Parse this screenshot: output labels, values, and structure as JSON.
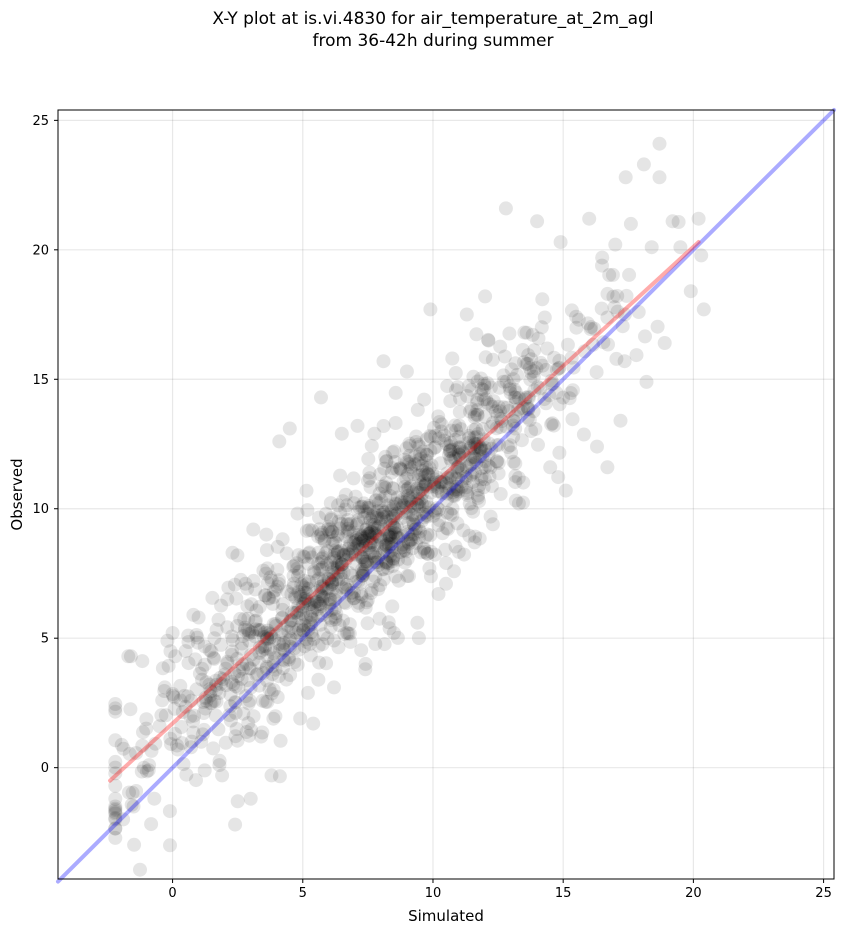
{
  "chart_data": {
    "type": "scatter",
    "title_line1": "X-Y plot at is.vi.4830 for air_temperature_at_2m_agl",
    "title_line2": "from 36-42h during summer",
    "xlabel": "Simulated",
    "ylabel": "Observed",
    "xlim": [
      -4.4,
      25.4
    ],
    "ylim": [
      -4.3,
      25.4
    ],
    "xticks": [
      0,
      5,
      10,
      15,
      20,
      25
    ],
    "yticks": [
      0,
      5,
      10,
      15,
      20,
      25
    ],
    "grid": true,
    "point_color": "#000000",
    "point_alpha": 0.1,
    "identity_line": {
      "color": "#0000ff",
      "x": [
        -4.4,
        25.4
      ],
      "y": [
        -4.4,
        25.4
      ]
    },
    "fit_line": {
      "color": "#ff0000",
      "x": [
        -2.4,
        20.2
      ],
      "y": [
        -0.5,
        20.3
      ]
    },
    "point_count": 1400,
    "points": [
      [
        -1.6,
        4.3
      ],
      [
        -1.7,
        4.3
      ],
      [
        -2.2,
        -2.0
      ],
      [
        -1.9,
        -2.0
      ],
      [
        -1.5,
        -1.5
      ],
      [
        -1.4,
        -0.9
      ],
      [
        -1.1,
        0.0
      ],
      [
        -0.9,
        0.1
      ],
      [
        -0.7,
        -1.2
      ],
      [
        -0.5,
        1.6
      ],
      [
        -0.4,
        2.6
      ],
      [
        -0.3,
        3.1
      ],
      [
        -0.2,
        4.9
      ],
      [
        0.0,
        5.2
      ],
      [
        0.1,
        4.3
      ],
      [
        -0.1,
        -3.0
      ],
      [
        0.2,
        0.7
      ],
      [
        0.3,
        2.6
      ],
      [
        0.5,
        4.5
      ],
      [
        0.6,
        5.1
      ],
      [
        0.8,
        5.9
      ],
      [
        1.0,
        5.8
      ],
      [
        1.1,
        1.0
      ],
      [
        1.3,
        3.3
      ],
      [
        1.5,
        2.5
      ],
      [
        1.6,
        4.2
      ],
      [
        1.8,
        0.1
      ],
      [
        1.9,
        -0.3
      ],
      [
        2.1,
        6.5
      ],
      [
        2.3,
        8.3
      ],
      [
        2.4,
        -2.2
      ],
      [
        2.5,
        -1.3
      ],
      [
        2.8,
        7.1
      ],
      [
        3.0,
        -1.2
      ],
      [
        3.1,
        9.2
      ],
      [
        3.4,
        1.2
      ],
      [
        3.6,
        9.0
      ],
      [
        3.8,
        -0.3
      ],
      [
        4.1,
        12.6
      ],
      [
        4.5,
        13.1
      ],
      [
        4.9,
        1.9
      ],
      [
        5.4,
        1.7
      ],
      [
        5.6,
        8.3
      ],
      [
        5.7,
        14.3
      ],
      [
        6.2,
        3.1
      ],
      [
        6.5,
        12.9
      ],
      [
        7.1,
        13.2
      ],
      [
        7.4,
        3.8
      ],
      [
        8.1,
        15.7
      ],
      [
        8.5,
        5.2
      ],
      [
        9.0,
        15.3
      ],
      [
        9.4,
        5.6
      ],
      [
        9.9,
        17.7
      ],
      [
        10.5,
        7.1
      ],
      [
        11.3,
        17.5
      ],
      [
        11.6,
        8.7
      ],
      [
        12.0,
        18.2
      ],
      [
        12.3,
        9.4
      ],
      [
        12.8,
        21.6
      ],
      [
        13.3,
        10.2
      ],
      [
        13.6,
        16.8
      ],
      [
        14.0,
        21.1
      ],
      [
        14.5,
        11.6
      ],
      [
        14.9,
        20.3
      ],
      [
        15.1,
        10.7
      ],
      [
        15.6,
        17.3
      ],
      [
        16.0,
        21.2
      ],
      [
        16.3,
        12.4
      ],
      [
        16.5,
        19.7
      ],
      [
        16.7,
        11.6
      ],
      [
        17.0,
        20.2
      ],
      [
        17.2,
        13.4
      ],
      [
        17.4,
        22.8
      ],
      [
        17.6,
        21.0
      ],
      [
        17.9,
        17.6
      ],
      [
        18.1,
        23.3
      ],
      [
        18.2,
        14.9
      ],
      [
        18.4,
        20.1
      ],
      [
        18.7,
        24.1
      ],
      [
        18.7,
        22.8
      ],
      [
        18.9,
        16.4
      ],
      [
        19.2,
        21.1
      ],
      [
        19.5,
        20.1
      ],
      [
        19.9,
        18.4
      ],
      [
        20.2,
        21.2
      ],
      [
        20.4,
        17.7
      ]
    ]
  }
}
